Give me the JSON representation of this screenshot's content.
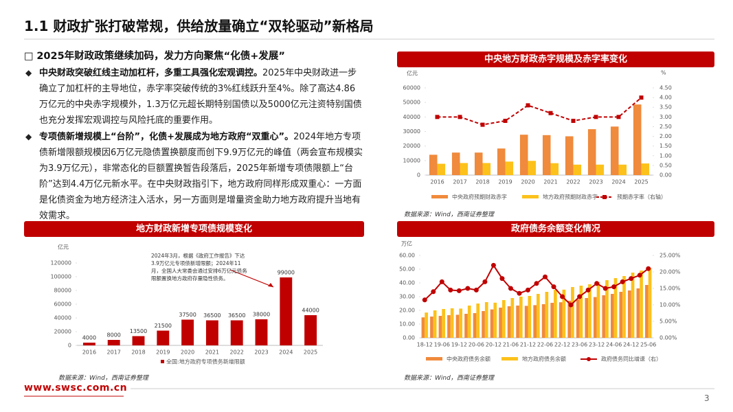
{
  "header": {
    "title": "1.1 财政扩张打破常规，供给放量确立“双轮驱动”新格局"
  },
  "section": {
    "title": "2025年财政政策继续加码，发力方向聚焦“化债+发展”",
    "bullets": [
      {
        "bold": "中央财政突破红线主动加杠杆，多重工具强化宏观调控。",
        "text": "2025年中央财政进一步确立了加杠杆的主导地位，赤字率突破传统的3%红线跃升至4%。除了高达4.86万亿元的中央赤字规模外，1.3万亿元超长期特别国债以及5000亿元注资特别国债也充分发挥宏观调控与风险托底的重要作用。"
      },
      {
        "bold": "专项债新增规模上“台阶”，化债+发展成为地方政府“双重心”。",
        "text": "2024年地方专项债新增限额规模因6万亿元隐债置换额度而创下9.9万亿元的峰值（两会宣布规模实为3.9万亿元），非常态化的巨额置换暂告段落后，2025年新增专项债限额上“台阶”达到4.4万亿元新水平。在中央财政指引下，地方政府同样形成双重心：一方面是化债资金为地方经济注入活水，另一方面则是增量资金助力地方政府提升当地有效需求。"
      }
    ]
  },
  "chart_data": [
    {
      "type": "combo",
      "title": "中央地方财政赤字规模及赤字率变化",
      "y_unit": "亿元",
      "y2_unit": "%",
      "source": "数据来源：Wind，西南证券整理",
      "categories": [
        "2016",
        "2017",
        "2018",
        "2019",
        "2020",
        "2021",
        "2022",
        "2023",
        "2024",
        "2025"
      ],
      "series": [
        {
          "name": "中央政府预期财政赤字",
          "color": "#f08a3c",
          "values": [
            14000,
            15500,
            15500,
            18300,
            27800,
            27500,
            26700,
            31600,
            33400,
            48600
          ]
        },
        {
          "name": "地方政府预期财政赤字",
          "color": "#fcc21b",
          "values": [
            7800,
            8300,
            8300,
            9300,
            9800,
            8200,
            7200,
            7200,
            7200,
            8000
          ]
        },
        {
          "name": "预期赤字率（右轴）",
          "color": "#c00000",
          "axis": "y2",
          "line_style": "dashed",
          "marker": "square",
          "values": [
            3.0,
            3.0,
            2.6,
            2.8,
            3.6,
            3.2,
            2.8,
            3.0,
            3.0,
            4.0
          ]
        }
      ],
      "ylim": [
        0,
        60000
      ],
      "yticks": [
        0,
        10000,
        20000,
        30000,
        40000,
        50000,
        60000
      ],
      "y2lim": [
        0,
        4.5
      ],
      "y2ticks": [
        {
          "value": 0,
          "label": "0.00"
        },
        {
          "value": 0.5,
          "label": "0.50"
        },
        {
          "value": 1,
          "label": "1.00"
        },
        {
          "value": 1.5,
          "label": "1.50"
        },
        {
          "value": 2,
          "label": "2.00"
        },
        {
          "value": 2.5,
          "label": "2.50"
        },
        {
          "value": 3,
          "label": "3.00"
        },
        {
          "value": 3.5,
          "label": "3.50"
        },
        {
          "value": 4,
          "label": "4.00"
        },
        {
          "value": 4.5,
          "label": "4.50"
        }
      ]
    },
    {
      "type": "bar",
      "title": "地方财政新增专项债规模变化",
      "y_unit": "亿元",
      "source": "数据来源：Wind，西南证券整理",
      "annotation": "2024年3月，根据《政府工作报告》下达3.9万亿元专项债新增限额；2024年11月，全国人大常委会通过安排6万亿元债务限额置换地方政府存量隐性债务。",
      "categories": [
        "2016",
        "2017",
        "2018",
        "2019",
        "2020",
        "2021",
        "2022",
        "2023",
        "2024",
        "2025"
      ],
      "series": [
        {
          "name": "全国:地方政府专项债务新增限额",
          "color": "#c00000",
          "values": [
            4000,
            8000,
            13500,
            21500,
            37500,
            36500,
            36500,
            38000,
            99000,
            44000
          ]
        }
      ],
      "ylim": [
        0,
        120000
      ],
      "yticks": [
        0,
        20000,
        40000,
        60000,
        80000,
        100000,
        120000
      ]
    },
    {
      "type": "combo",
      "title": "政府债务余额变化情况",
      "y_unit": "万亿",
      "source": "数据来源：Wind，西南证券整理",
      "categories": [
        "18-12",
        null,
        "19-06",
        null,
        "19-12",
        null,
        "20-06",
        null,
        "20-12",
        null,
        "21-06",
        null,
        "21-12",
        null,
        "22-06",
        null,
        "22-12",
        null,
        "23-06",
        null,
        "23-12",
        null,
        "24-06",
        null,
        "24-12",
        null,
        "25-06"
      ],
      "series": [
        {
          "name": "中央政府债务余额",
          "color": "#f08a3c",
          "values": [
            14.9,
            15.5,
            16.0,
            16.5,
            16.8,
            17.5,
            18.0,
            19.5,
            20.7,
            22.0,
            23.0,
            23.5,
            23.3,
            23.8,
            24.5,
            25.5,
            25.9,
            27.0,
            28.0,
            29.0,
            29.7,
            31.0,
            32.0,
            33.5,
            34.5,
            36.0,
            38.5
          ]
        },
        {
          "name": "地方政府债务余额",
          "color": "#fcc21b",
          "values": [
            18.4,
            20.0,
            21.0,
            21.5,
            21.3,
            23.5,
            25.0,
            26.0,
            25.6,
            27.5,
            29.0,
            30.0,
            30.5,
            32.0,
            33.5,
            35.0,
            35.1,
            37.0,
            38.0,
            39.0,
            40.7,
            42.0,
            43.5,
            45.0,
            47.5,
            49.0,
            51.0
          ]
        },
        {
          "name": "政府债务同比增速（右）",
          "color": "#c00000",
          "axis": "y2",
          "line_style": "solid",
          "marker": "circle",
          "values": [
            11.5,
            14.0,
            17.0,
            14.5,
            14.3,
            15.0,
            14.5,
            17.0,
            22.0,
            18.0,
            15.0,
            13.5,
            14.5,
            16.5,
            18.5,
            15.5,
            12.5,
            10.0,
            12.5,
            14.5,
            16.5,
            15.0,
            15.5,
            17.0,
            18.0,
            19.0,
            21.0
          ]
        }
      ],
      "ylim": [
        0,
        60
      ],
      "yticks": [
        {
          "value": 0,
          "label": "0.00"
        },
        {
          "value": 10,
          "label": "10.00"
        },
        {
          "value": 20,
          "label": "20.00"
        },
        {
          "value": 30,
          "label": "30.00"
        },
        {
          "value": 40,
          "label": "40.00"
        },
        {
          "value": 50,
          "label": "50.00"
        },
        {
          "value": 60,
          "label": "60.00"
        }
      ],
      "y2lim": [
        0,
        25
      ],
      "y2ticks": [
        {
          "value": 0,
          "label": "0.00%"
        },
        {
          "value": 5,
          "label": "5.00%"
        },
        {
          "value": 10,
          "label": "10.00%"
        },
        {
          "value": 15,
          "label": "15.00%"
        },
        {
          "value": 20,
          "label": "20.00%"
        },
        {
          "value": 25,
          "label": "25.00%"
        }
      ]
    }
  ],
  "footer": {
    "url": "www.swsc.com.cn",
    "page": "3"
  }
}
